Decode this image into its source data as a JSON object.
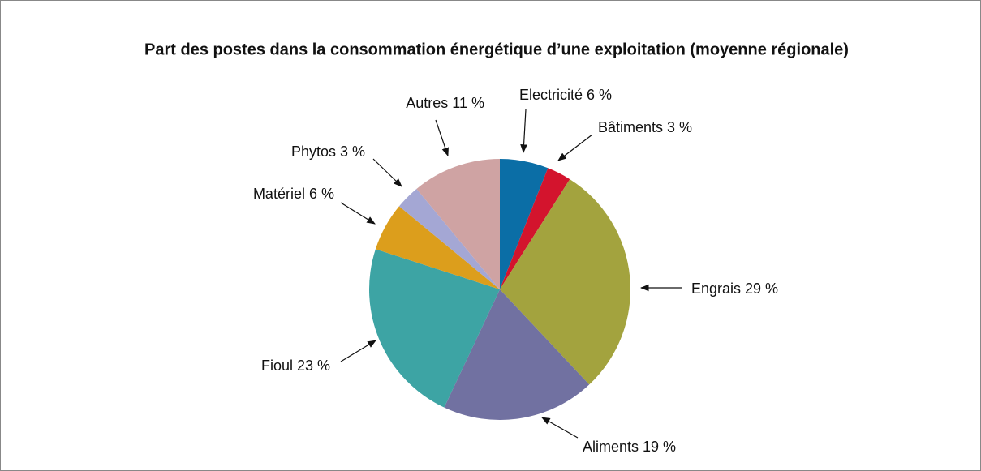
{
  "chart_data": {
    "type": "pie",
    "title": "Part des postes dans la consommation énergétique d’une exploitation (moyenne régionale)",
    "categories": [
      "Electricité",
      "Bâtiments",
      "Engrais",
      "Aliments",
      "Fioul",
      "Matériel",
      "Phytos",
      "Autres"
    ],
    "values": [
      6,
      3,
      29,
      19,
      23,
      6,
      3,
      11
    ],
    "value_labels": [
      "6 %",
      "3 %",
      "29 %",
      "19 %",
      "23 %",
      "6 %",
      "3 %",
      "11 %"
    ],
    "colors": [
      "#0b6ea6",
      "#d3142d",
      "#a3a33e",
      "#7171a1",
      "#3da4a4",
      "#dc9e1c",
      "#a4a7d4",
      "#cfa3a3"
    ]
  }
}
